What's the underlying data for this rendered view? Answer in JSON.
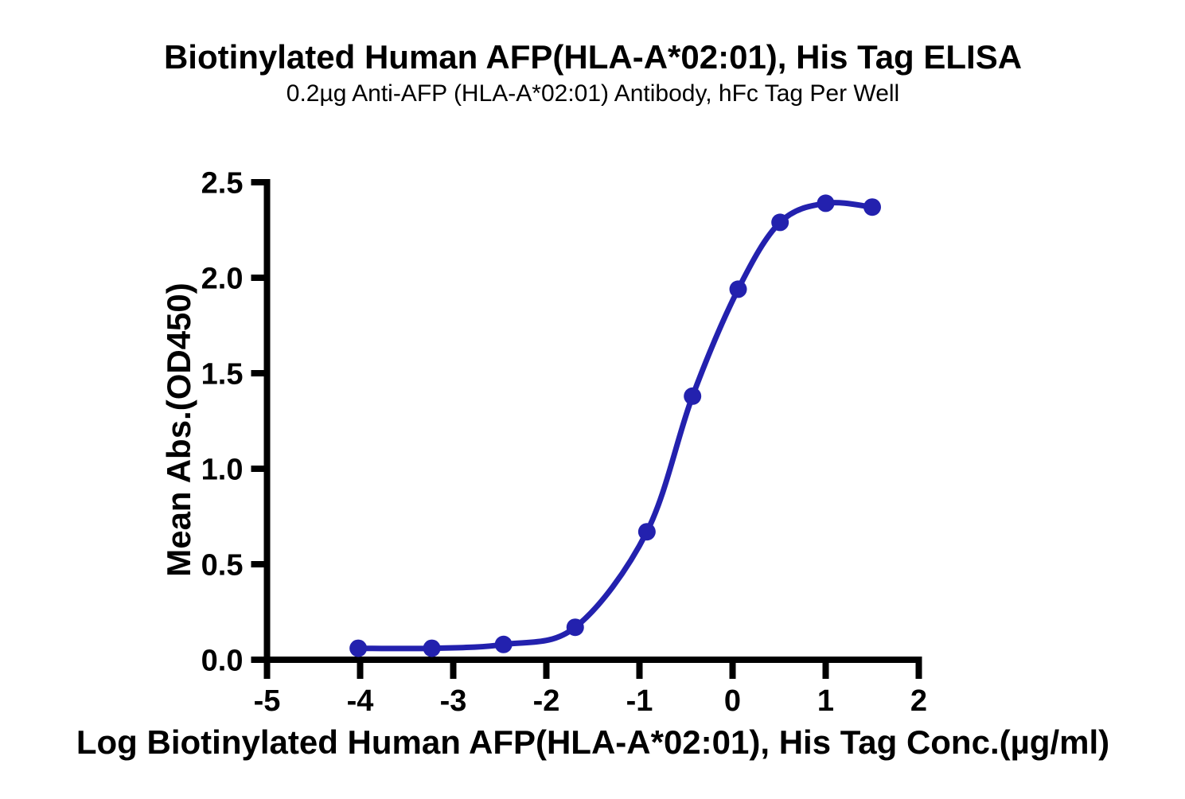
{
  "chart_data": {
    "type": "line",
    "title": "Biotinylated Human AFP(HLA-A*02:01), His Tag ELISA",
    "subtitle": "0.2µg Anti-AFP (HLA-A*02:01) Antibody, hFc Tag Per Well",
    "xlabel": "Log Biotinylated Human AFP(HLA-A*02:01), His Tag Conc.(µg/ml)",
    "ylabel": "Mean Abs.(OD450)",
    "xlim": [
      -5,
      2
    ],
    "ylim": [
      0,
      2.5
    ],
    "x_ticks": [
      -5,
      -4,
      -3,
      -2,
      -1,
      0,
      1,
      2
    ],
    "x_tick_labels": [
      "-5",
      "-4",
      "-3",
      "-2",
      "-1",
      "0",
      "1",
      "2"
    ],
    "y_ticks": [
      0,
      0.5,
      1.0,
      1.5,
      2.0,
      2.5
    ],
    "y_tick_labels": [
      "0.0",
      "0.5",
      "1.0",
      "1.5",
      "2.0",
      "2.5"
    ],
    "grid": false,
    "legend": "none",
    "curve_style": "smooth-through-points",
    "series": [
      {
        "name": "Biotinylated Human AFP(HLA-A*02:01), His Tag",
        "marker": "circle",
        "color": "#2321AE",
        "points": [
          {
            "x": -4.02,
            "y": 0.06
          },
          {
            "x": -3.23,
            "y": 0.06
          },
          {
            "x": -2.46,
            "y": 0.08
          },
          {
            "x": -1.69,
            "y": 0.17
          },
          {
            "x": -0.92,
            "y": 0.67
          },
          {
            "x": -0.43,
            "y": 1.38
          },
          {
            "x": 0.06,
            "y": 1.94
          },
          {
            "x": 0.51,
            "y": 2.29
          },
          {
            "x": 1.0,
            "y": 2.39
          },
          {
            "x": 1.5,
            "y": 2.37
          }
        ]
      }
    ]
  },
  "style": {
    "series_blue": "#2321AE",
    "axis_color": "#000000",
    "background": "#FFFFFF"
  }
}
